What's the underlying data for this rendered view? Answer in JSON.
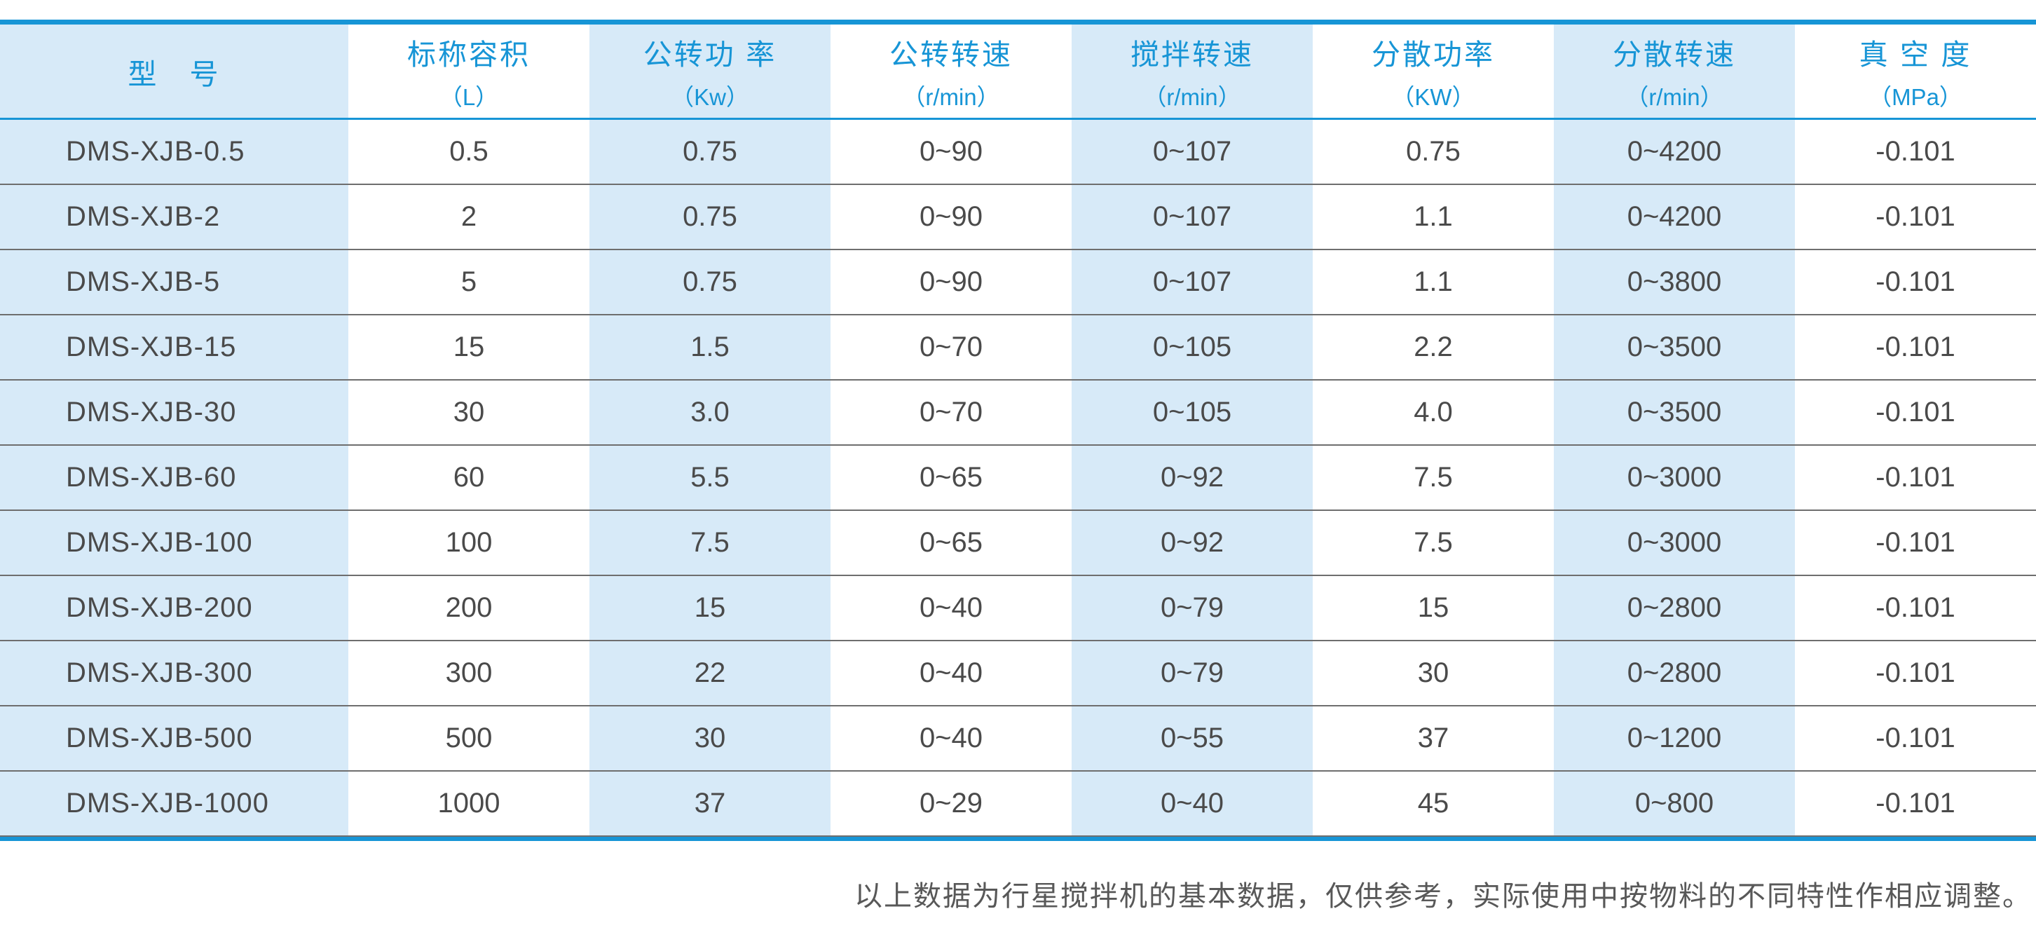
{
  "colors": {
    "accent": "#1795d6",
    "column_stripe": "#d7eaf8",
    "data_text": "#4a4a4a",
    "row_separator": "#6e6e6e",
    "note_text": "#585858"
  },
  "table": {
    "columns": [
      {
        "title": "型　号",
        "unit": ""
      },
      {
        "title": "标称容积",
        "unit": "（L）"
      },
      {
        "title": "公转功 率",
        "unit": "（Kw）"
      },
      {
        "title": "公转转速",
        "unit": "（r/min）"
      },
      {
        "title": "搅拌转速",
        "unit": "（r/min）"
      },
      {
        "title": "分散功率",
        "unit": "（KW）"
      },
      {
        "title": "分散转速",
        "unit": "（r/min）"
      },
      {
        "title": "真 空 度",
        "unit": "（MPa）"
      }
    ],
    "rows": [
      [
        "DMS-XJB-0.5",
        "0.5",
        "0.75",
        "0~90",
        "0~107",
        "0.75",
        "0~4200",
        "-0.101"
      ],
      [
        "DMS-XJB-2",
        "2",
        "0.75",
        "0~90",
        "0~107",
        "1.1",
        "0~4200",
        "-0.101"
      ],
      [
        "DMS-XJB-5",
        "5",
        "0.75",
        "0~90",
        "0~107",
        "1.1",
        "0~3800",
        "-0.101"
      ],
      [
        "DMS-XJB-15",
        "15",
        "1.5",
        "0~70",
        "0~105",
        "2.2",
        "0~3500",
        "-0.101"
      ],
      [
        "DMS-XJB-30",
        "30",
        "3.0",
        "0~70",
        "0~105",
        "4.0",
        "0~3500",
        "-0.101"
      ],
      [
        "DMS-XJB-60",
        "60",
        "5.5",
        "0~65",
        "0~92",
        "7.5",
        "0~3000",
        "-0.101"
      ],
      [
        "DMS-XJB-100",
        "100",
        "7.5",
        "0~65",
        "0~92",
        "7.5",
        "0~3000",
        "-0.101"
      ],
      [
        "DMS-XJB-200",
        "200",
        "15",
        "0~40",
        "0~79",
        "15",
        "0~2800",
        "-0.101"
      ],
      [
        "DMS-XJB-300",
        "300",
        "22",
        "0~40",
        "0~79",
        "30",
        "0~2800",
        "-0.101"
      ],
      [
        "DMS-XJB-500",
        "500",
        "30",
        "0~40",
        "0~55",
        "37",
        "0~1200",
        "-0.101"
      ],
      [
        "DMS-XJB-1000",
        "1000",
        "37",
        "0~29",
        "0~40",
        "45",
        "0~800",
        "-0.101"
      ]
    ]
  },
  "footer": {
    "note": "以上数据为行星搅拌机的基本数据，仅供参考，实际使用中按物料的不同特性作相应调整。"
  }
}
